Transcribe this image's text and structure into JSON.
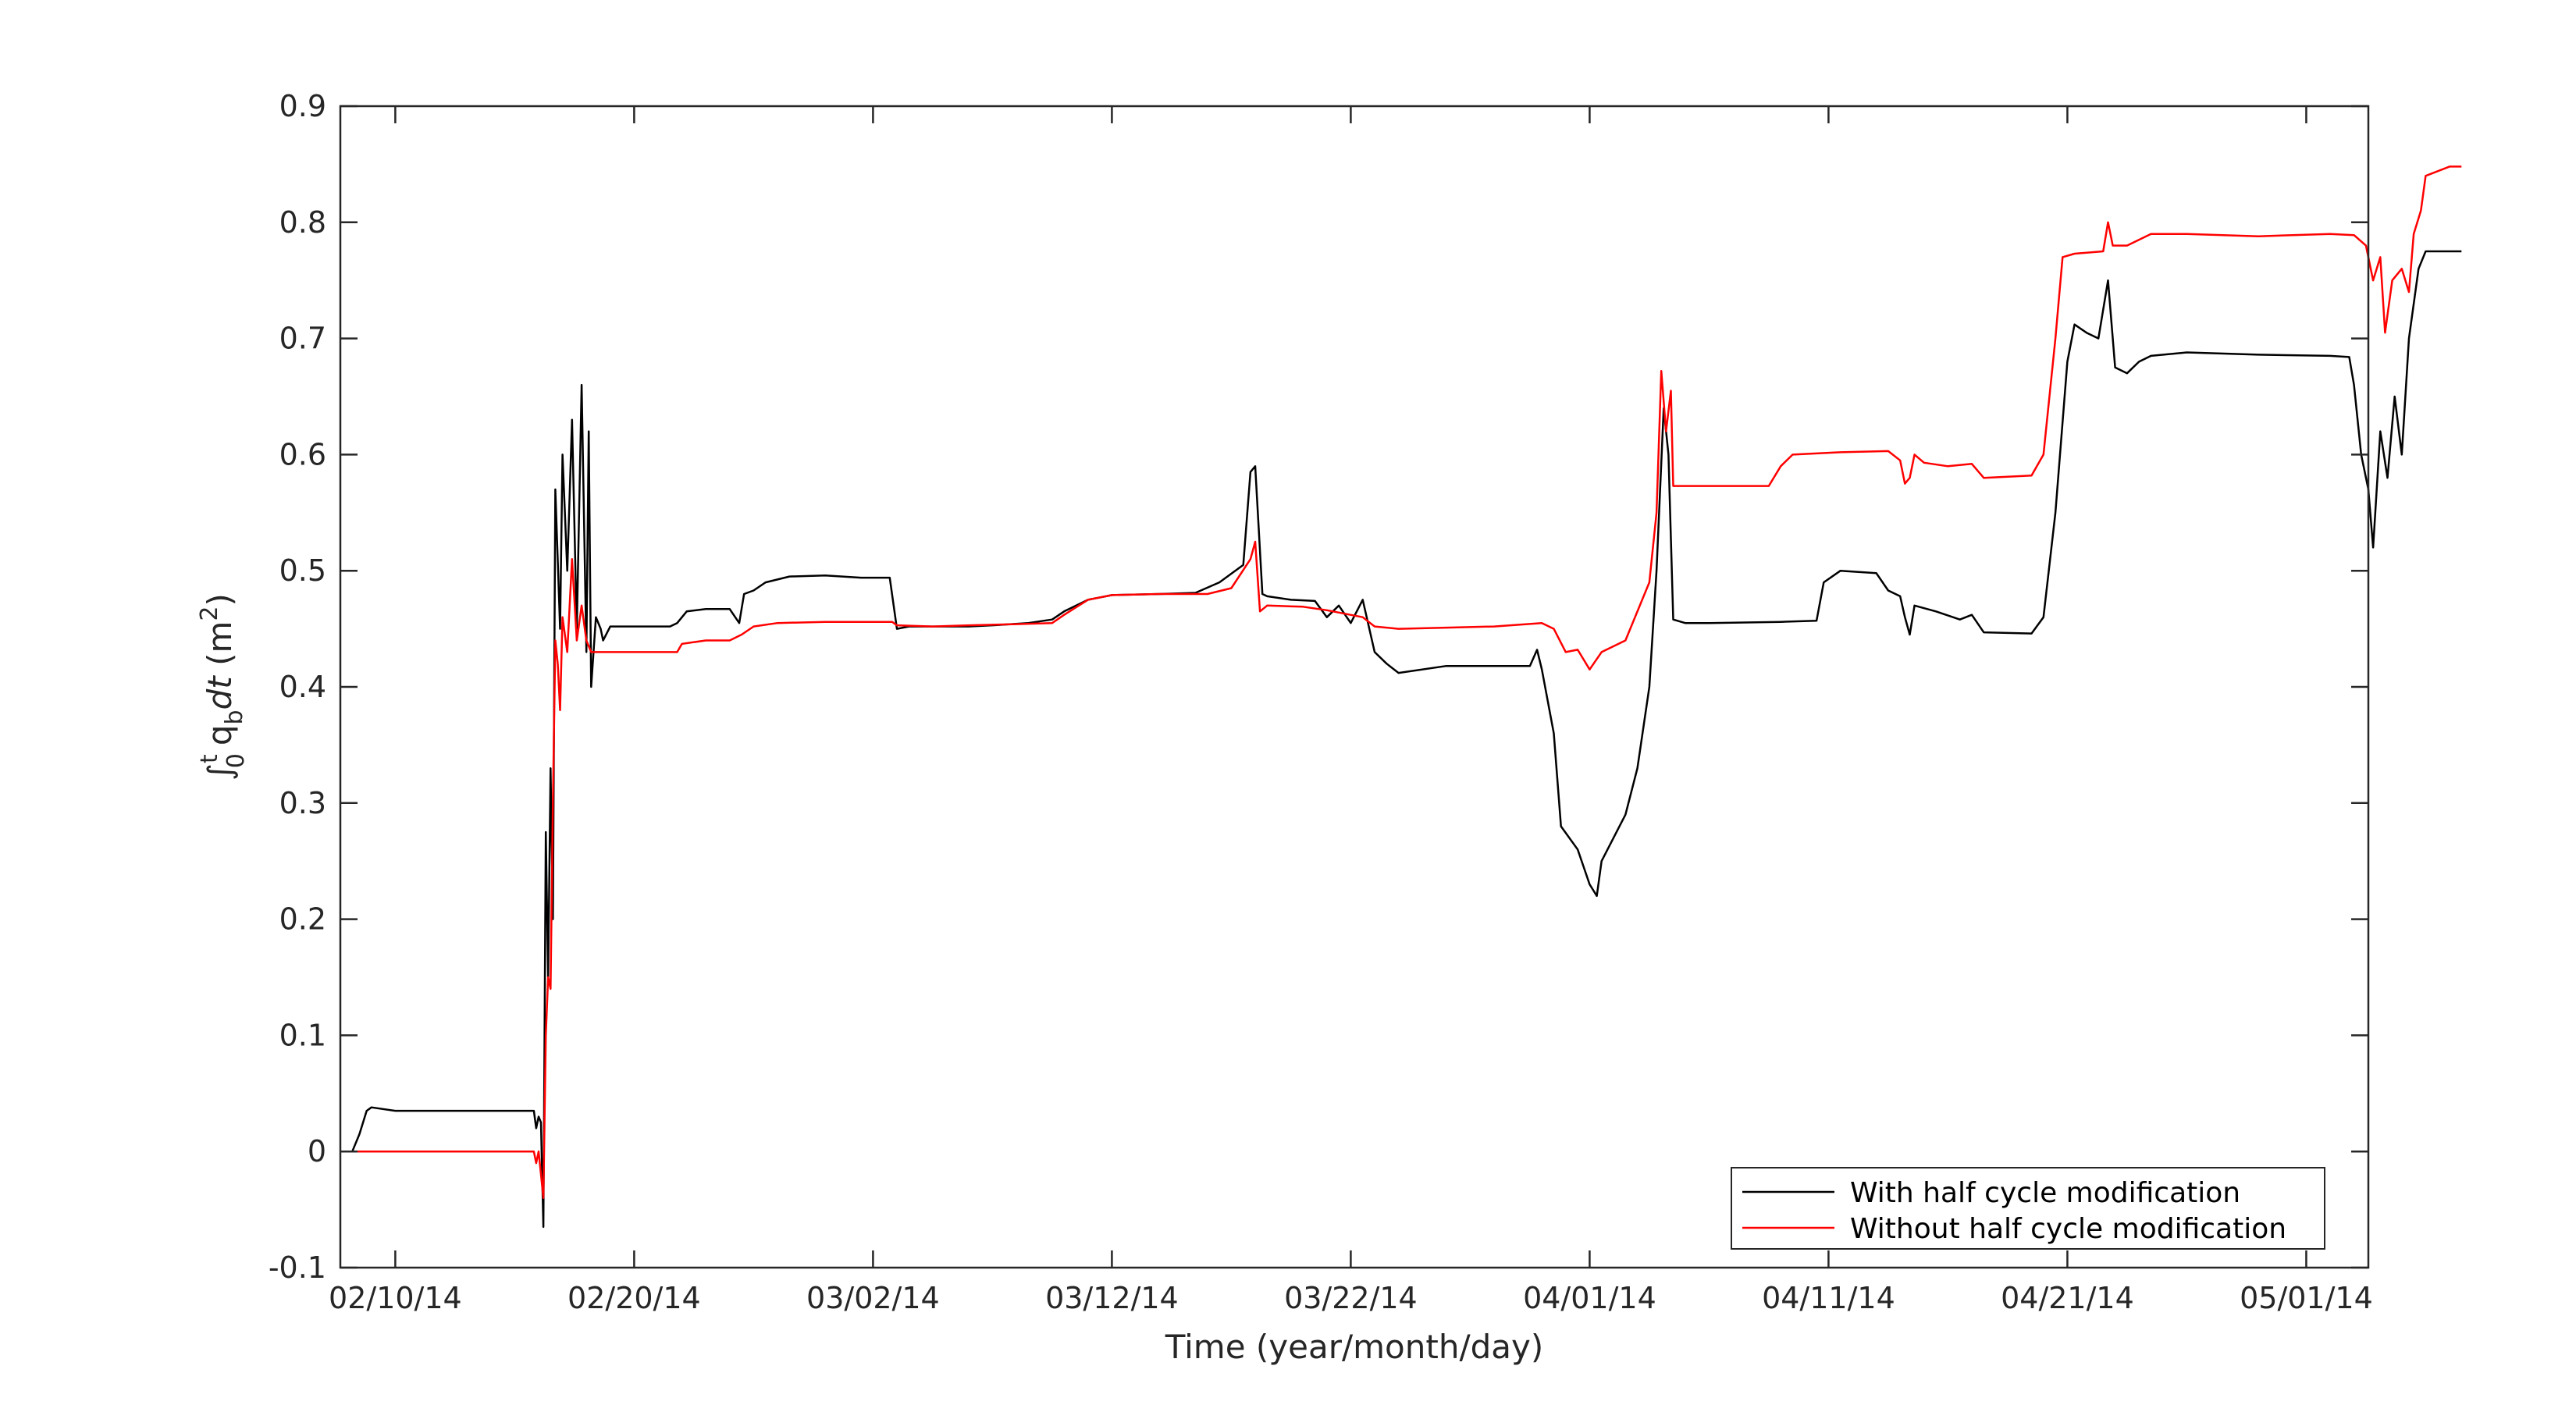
{
  "chart_data": {
    "type": "line",
    "title": "",
    "xlabel": "Time (year/month/day)",
    "ylabel_parts": {
      "integral": "∫",
      "upper_limit": "t",
      "lower_limit": "0",
      "symbol": "q",
      "subscript": "b",
      "dt": "dt",
      "unit_open": "(m",
      "unit_power": "2",
      "unit_close": ")"
    },
    "x_tick_labels": [
      "02/10/14",
      "02/20/14",
      "03/02/14",
      "03/12/14",
      "03/22/14",
      "04/01/14",
      "04/11/14",
      "04/21/14",
      "05/01/14"
    ],
    "y_tick_labels": [
      "-0.1",
      "0",
      "0.1",
      "0.2",
      "0.3",
      "0.4",
      "0.5",
      "0.6",
      "0.7",
      "0.8",
      "0.9"
    ],
    "xlim_days_from_first_tick": [
      -2.3,
      82.6
    ],
    "ylim": [
      -0.1,
      0.9
    ],
    "grid": false,
    "legend_position": "bottom-right",
    "series": [
      {
        "name": "With half cycle modification",
        "color": "#000000",
        "points": [
          [
            -2.3,
            0.0
          ],
          [
            -1.8,
            0.0
          ],
          [
            -1.5,
            0.015
          ],
          [
            -1.2,
            0.035
          ],
          [
            -1.0,
            0.038
          ],
          [
            0.0,
            0.035
          ],
          [
            2.0,
            0.035
          ],
          [
            4.0,
            0.035
          ],
          [
            5.8,
            0.035
          ],
          [
            5.9,
            0.02
          ],
          [
            6.0,
            0.03
          ],
          [
            6.1,
            0.025
          ],
          [
            6.2,
            -0.065
          ],
          [
            6.3,
            0.275
          ],
          [
            6.4,
            0.15
          ],
          [
            6.5,
            0.33
          ],
          [
            6.6,
            0.2
          ],
          [
            6.7,
            0.57
          ],
          [
            6.9,
            0.45
          ],
          [
            7.0,
            0.6
          ],
          [
            7.2,
            0.5
          ],
          [
            7.4,
            0.63
          ],
          [
            7.6,
            0.45
          ],
          [
            7.8,
            0.66
          ],
          [
            8.0,
            0.43
          ],
          [
            8.1,
            0.62
          ],
          [
            8.2,
            0.4
          ],
          [
            8.4,
            0.46
          ],
          [
            8.6,
            0.45
          ],
          [
            8.7,
            0.44
          ],
          [
            9.0,
            0.452
          ],
          [
            10.0,
            0.452
          ],
          [
            11.5,
            0.452
          ],
          [
            11.8,
            0.455
          ],
          [
            12.2,
            0.465
          ],
          [
            13.0,
            0.467
          ],
          [
            14.0,
            0.467
          ],
          [
            14.4,
            0.455
          ],
          [
            14.6,
            0.48
          ],
          [
            15.0,
            0.483
          ],
          [
            15.5,
            0.49
          ],
          [
            16.5,
            0.495
          ],
          [
            18.0,
            0.496
          ],
          [
            19.5,
            0.494
          ],
          [
            20.7,
            0.494
          ],
          [
            21.0,
            0.45
          ],
          [
            21.5,
            0.452
          ],
          [
            22.5,
            0.452
          ],
          [
            24.0,
            0.452
          ],
          [
            25.0,
            0.453
          ],
          [
            26.5,
            0.455
          ],
          [
            27.5,
            0.458
          ],
          [
            28.0,
            0.465
          ],
          [
            29.0,
            0.475
          ],
          [
            30.0,
            0.479
          ],
          [
            32.0,
            0.48
          ],
          [
            33.5,
            0.481
          ],
          [
            34.5,
            0.49
          ],
          [
            35.5,
            0.505
          ],
          [
            35.8,
            0.585
          ],
          [
            36.0,
            0.59
          ],
          [
            36.3,
            0.48
          ],
          [
            36.5,
            0.478
          ],
          [
            37.5,
            0.475
          ],
          [
            38.5,
            0.474
          ],
          [
            39.0,
            0.46
          ],
          [
            39.5,
            0.47
          ],
          [
            40.0,
            0.455
          ],
          [
            40.5,
            0.475
          ],
          [
            41.0,
            0.43
          ],
          [
            41.5,
            0.42
          ],
          [
            42.0,
            0.412
          ],
          [
            44.0,
            0.418
          ],
          [
            46.0,
            0.418
          ],
          [
            47.5,
            0.418
          ],
          [
            47.8,
            0.432
          ],
          [
            48.0,
            0.415
          ],
          [
            48.5,
            0.36
          ],
          [
            48.8,
            0.28
          ],
          [
            49.5,
            0.26
          ],
          [
            50.0,
            0.23
          ],
          [
            50.3,
            0.22
          ],
          [
            50.5,
            0.25
          ],
          [
            51.0,
            0.27
          ],
          [
            51.5,
            0.29
          ],
          [
            52.0,
            0.33
          ],
          [
            52.5,
            0.4
          ],
          [
            52.8,
            0.5
          ],
          [
            53.1,
            0.64
          ],
          [
            53.3,
            0.6
          ],
          [
            53.5,
            0.458
          ],
          [
            54.0,
            0.455
          ],
          [
            55.0,
            0.455
          ],
          [
            58.0,
            0.456
          ],
          [
            59.5,
            0.457
          ],
          [
            59.8,
            0.49
          ],
          [
            60.5,
            0.5
          ],
          [
            62.0,
            0.498
          ],
          [
            62.5,
            0.483
          ],
          [
            63.0,
            0.478
          ],
          [
            63.2,
            0.46
          ],
          [
            63.4,
            0.445
          ],
          [
            63.6,
            0.47
          ],
          [
            64.5,
            0.465
          ],
          [
            65.5,
            0.458
          ],
          [
            66.0,
            0.462
          ],
          [
            66.5,
            0.447
          ],
          [
            68.5,
            0.446
          ],
          [
            69.0,
            0.46
          ],
          [
            69.5,
            0.55
          ],
          [
            70.0,
            0.68
          ],
          [
            70.3,
            0.712
          ],
          [
            70.8,
            0.705
          ],
          [
            71.3,
            0.7
          ],
          [
            71.7,
            0.75
          ],
          [
            72.0,
            0.675
          ],
          [
            72.5,
            0.67
          ],
          [
            73.0,
            0.68
          ],
          [
            73.5,
            0.685
          ],
          [
            75.0,
            0.688
          ],
          [
            78.0,
            0.686
          ],
          [
            81.0,
            0.685
          ],
          [
            81.8,
            0.684
          ],
          [
            82.0,
            0.66
          ],
          [
            82.3,
            0.6
          ],
          [
            82.6,
            0.57
          ],
          [
            82.8,
            0.52
          ],
          [
            83.1,
            0.62
          ],
          [
            83.4,
            0.58
          ],
          [
            83.7,
            0.65
          ],
          [
            84.0,
            0.6
          ],
          [
            84.3,
            0.7
          ],
          [
            84.7,
            0.76
          ],
          [
            85.0,
            0.775
          ],
          [
            86.5,
            0.775
          ]
        ]
      },
      {
        "name": "Without half cycle modification",
        "color": "#ff0000",
        "points": [
          [
            -2.3,
            0.0
          ],
          [
            0.0,
            0.0
          ],
          [
            2.0,
            0.0
          ],
          [
            4.0,
            0.0
          ],
          [
            5.8,
            0.0
          ],
          [
            5.9,
            -0.01
          ],
          [
            6.0,
            0.0
          ],
          [
            6.2,
            -0.04
          ],
          [
            6.3,
            0.1
          ],
          [
            6.4,
            0.15
          ],
          [
            6.5,
            0.14
          ],
          [
            6.6,
            0.3
          ],
          [
            6.7,
            0.44
          ],
          [
            6.8,
            0.42
          ],
          [
            6.9,
            0.38
          ],
          [
            7.0,
            0.46
          ],
          [
            7.2,
            0.43
          ],
          [
            7.4,
            0.51
          ],
          [
            7.6,
            0.44
          ],
          [
            7.8,
            0.47
          ],
          [
            8.0,
            0.44
          ],
          [
            8.2,
            0.43
          ],
          [
            8.5,
            0.43
          ],
          [
            9.0,
            0.43
          ],
          [
            11.5,
            0.43
          ],
          [
            11.8,
            0.43
          ],
          [
            12.0,
            0.437
          ],
          [
            13.0,
            0.44
          ],
          [
            14.0,
            0.44
          ],
          [
            14.5,
            0.445
          ],
          [
            15.0,
            0.452
          ],
          [
            16.0,
            0.455
          ],
          [
            18.0,
            0.456
          ],
          [
            20.0,
            0.456
          ],
          [
            20.8,
            0.456
          ],
          [
            21.0,
            0.453
          ],
          [
            22.5,
            0.452
          ],
          [
            24.0,
            0.453
          ],
          [
            26.0,
            0.454
          ],
          [
            27.5,
            0.455
          ],
          [
            28.0,
            0.462
          ],
          [
            29.0,
            0.475
          ],
          [
            30.0,
            0.479
          ],
          [
            32.0,
            0.48
          ],
          [
            34.0,
            0.48
          ],
          [
            35.0,
            0.485
          ],
          [
            35.8,
            0.51
          ],
          [
            36.0,
            0.525
          ],
          [
            36.2,
            0.465
          ],
          [
            36.5,
            0.47
          ],
          [
            38.0,
            0.469
          ],
          [
            39.0,
            0.466
          ],
          [
            40.5,
            0.46
          ],
          [
            41.0,
            0.452
          ],
          [
            42.0,
            0.45
          ],
          [
            44.0,
            0.451
          ],
          [
            46.0,
            0.452
          ],
          [
            48.0,
            0.455
          ],
          [
            48.5,
            0.45
          ],
          [
            49.0,
            0.43
          ],
          [
            49.5,
            0.432
          ],
          [
            50.0,
            0.415
          ],
          [
            50.5,
            0.43
          ],
          [
            51.5,
            0.44
          ],
          [
            52.5,
            0.49
          ],
          [
            52.8,
            0.55
          ],
          [
            53.0,
            0.672
          ],
          [
            53.2,
            0.62
          ],
          [
            53.4,
            0.655
          ],
          [
            53.5,
            0.573
          ],
          [
            55.0,
            0.573
          ],
          [
            57.5,
            0.573
          ],
          [
            58.0,
            0.59
          ],
          [
            58.5,
            0.6
          ],
          [
            60.5,
            0.602
          ],
          [
            62.5,
            0.603
          ],
          [
            63.0,
            0.595
          ],
          [
            63.2,
            0.575
          ],
          [
            63.4,
            0.58
          ],
          [
            63.6,
            0.6
          ],
          [
            64.0,
            0.593
          ],
          [
            65.0,
            0.59
          ],
          [
            66.0,
            0.592
          ],
          [
            66.5,
            0.58
          ],
          [
            68.5,
            0.582
          ],
          [
            69.0,
            0.6
          ],
          [
            69.5,
            0.7
          ],
          [
            69.8,
            0.77
          ],
          [
            70.3,
            0.773
          ],
          [
            71.5,
            0.775
          ],
          [
            71.7,
            0.8
          ],
          [
            71.9,
            0.78
          ],
          [
            72.5,
            0.78
          ],
          [
            73.5,
            0.79
          ],
          [
            75.0,
            0.79
          ],
          [
            78.0,
            0.788
          ],
          [
            81.0,
            0.79
          ],
          [
            82.0,
            0.789
          ],
          [
            82.5,
            0.78
          ],
          [
            82.8,
            0.75
          ],
          [
            83.1,
            0.77
          ],
          [
            83.3,
            0.705
          ],
          [
            83.6,
            0.75
          ],
          [
            84.0,
            0.76
          ],
          [
            84.3,
            0.74
          ],
          [
            84.5,
            0.79
          ],
          [
            84.8,
            0.81
          ],
          [
            85.0,
            0.84
          ],
          [
            86.0,
            0.848
          ],
          [
            86.5,
            0.848
          ]
        ]
      }
    ]
  }
}
